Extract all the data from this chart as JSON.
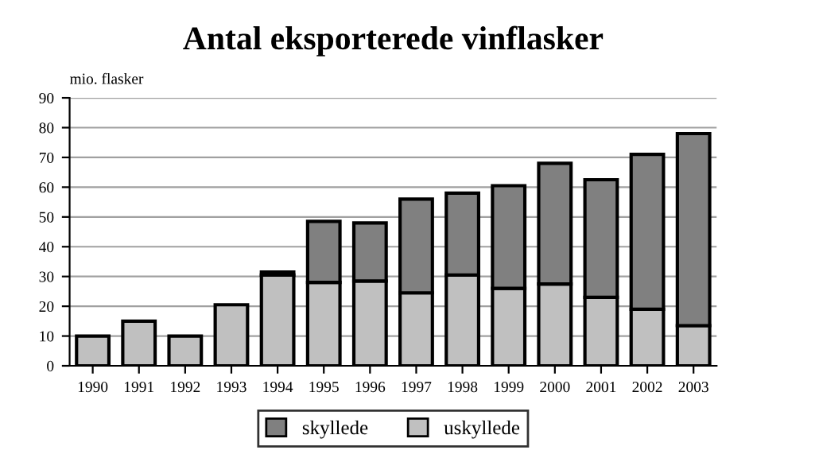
{
  "chart_data": {
    "type": "bar",
    "title": "Antal eksporterede vinflasker",
    "ylabel": "mio. flasker",
    "categories": [
      "1990",
      "1991",
      "1992",
      "1993",
      "1994",
      "1995",
      "1996",
      "1997",
      "1998",
      "1999",
      "2000",
      "2001",
      "2002",
      "2003"
    ],
    "stacked": true,
    "series": [
      {
        "name": "uskyllede",
        "color": "#c0c0c0",
        "values": [
          10,
          15,
          10,
          20.5,
          30.5,
          28,
          28.5,
          24.5,
          30.5,
          26,
          27.5,
          23,
          19,
          13.5
        ]
      },
      {
        "name": "skyllede",
        "color": "#808080",
        "values": [
          null,
          null,
          null,
          null,
          1,
          20.5,
          19.5,
          31.5,
          27.5,
          34.5,
          40.5,
          39.5,
          52,
          64.5
        ]
      }
    ],
    "ylim": [
      0,
      90
    ],
    "yticks": [
      0,
      10,
      20,
      30,
      40,
      50,
      60,
      70,
      80,
      90
    ],
    "grid": "y",
    "legend": "bottom"
  }
}
